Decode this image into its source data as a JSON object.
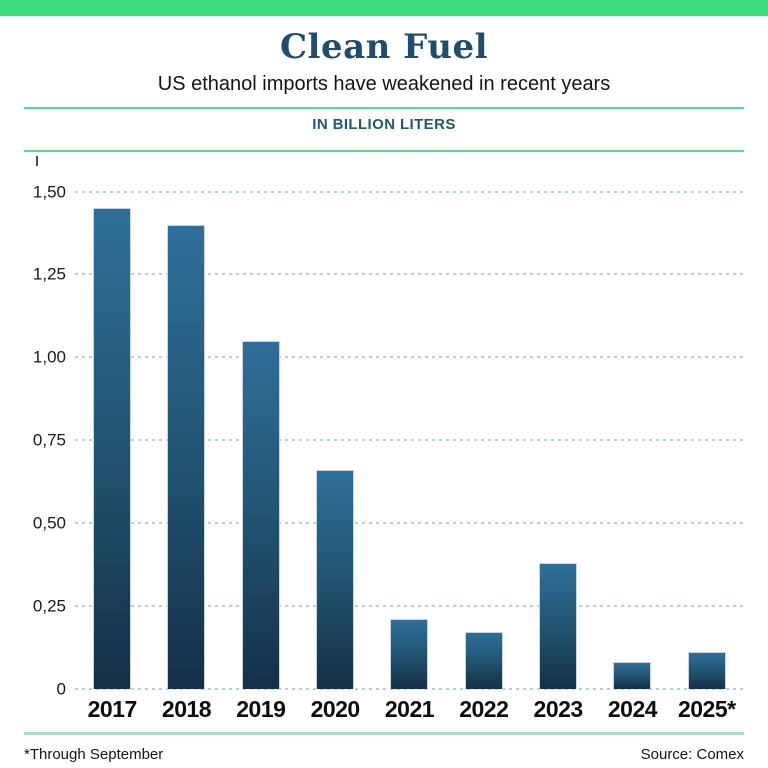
{
  "header": {
    "title": "Clean Fuel",
    "subtitle": "US ethanol imports have weakened in recent years"
  },
  "chart_data": {
    "type": "bar",
    "title": "Clean Fuel",
    "subtitle": "US ethanol imports have weakened in recent years",
    "units_label": "IN BILLION LITERS",
    "categories": [
      "2017",
      "2018",
      "2019",
      "2020",
      "2021",
      "2022",
      "2023",
      "2024",
      "2025*"
    ],
    "values": [
      1.45,
      1.4,
      1.05,
      0.66,
      0.21,
      0.17,
      0.38,
      0.08,
      0.11
    ],
    "xlabel": "",
    "ylabel": "IN BILLION LITERS",
    "ylim": [
      0,
      1.5
    ],
    "yticks": [
      {
        "label": "1,50",
        "value": 1.5
      },
      {
        "label": "1,25",
        "value": 1.25
      },
      {
        "label": "1,00",
        "value": 1.0
      },
      {
        "label": "0,75",
        "value": 0.75
      },
      {
        "label": "0,50",
        "value": 0.5
      },
      {
        "label": "0,25",
        "value": 0.25
      },
      {
        "label": "0",
        "value": 0.0
      }
    ],
    "decimal_separator": ",",
    "grid": "horizontal-dotted",
    "legend": "none",
    "bar_color_top": "#2f6f99",
    "bar_color_bottom": "#142f47"
  },
  "footer": {
    "note": "*Through September",
    "source": "Source: Comex"
  },
  "colors": {
    "accent_green": "#3edc7c",
    "rule_green": "#57d98d",
    "footer_rule_green": "#a9e0bf",
    "title_blue": "#1f4d6e",
    "kicker_blue": "#215a74",
    "gridline": "#b9cdd9",
    "text": "#1a1a1a"
  }
}
